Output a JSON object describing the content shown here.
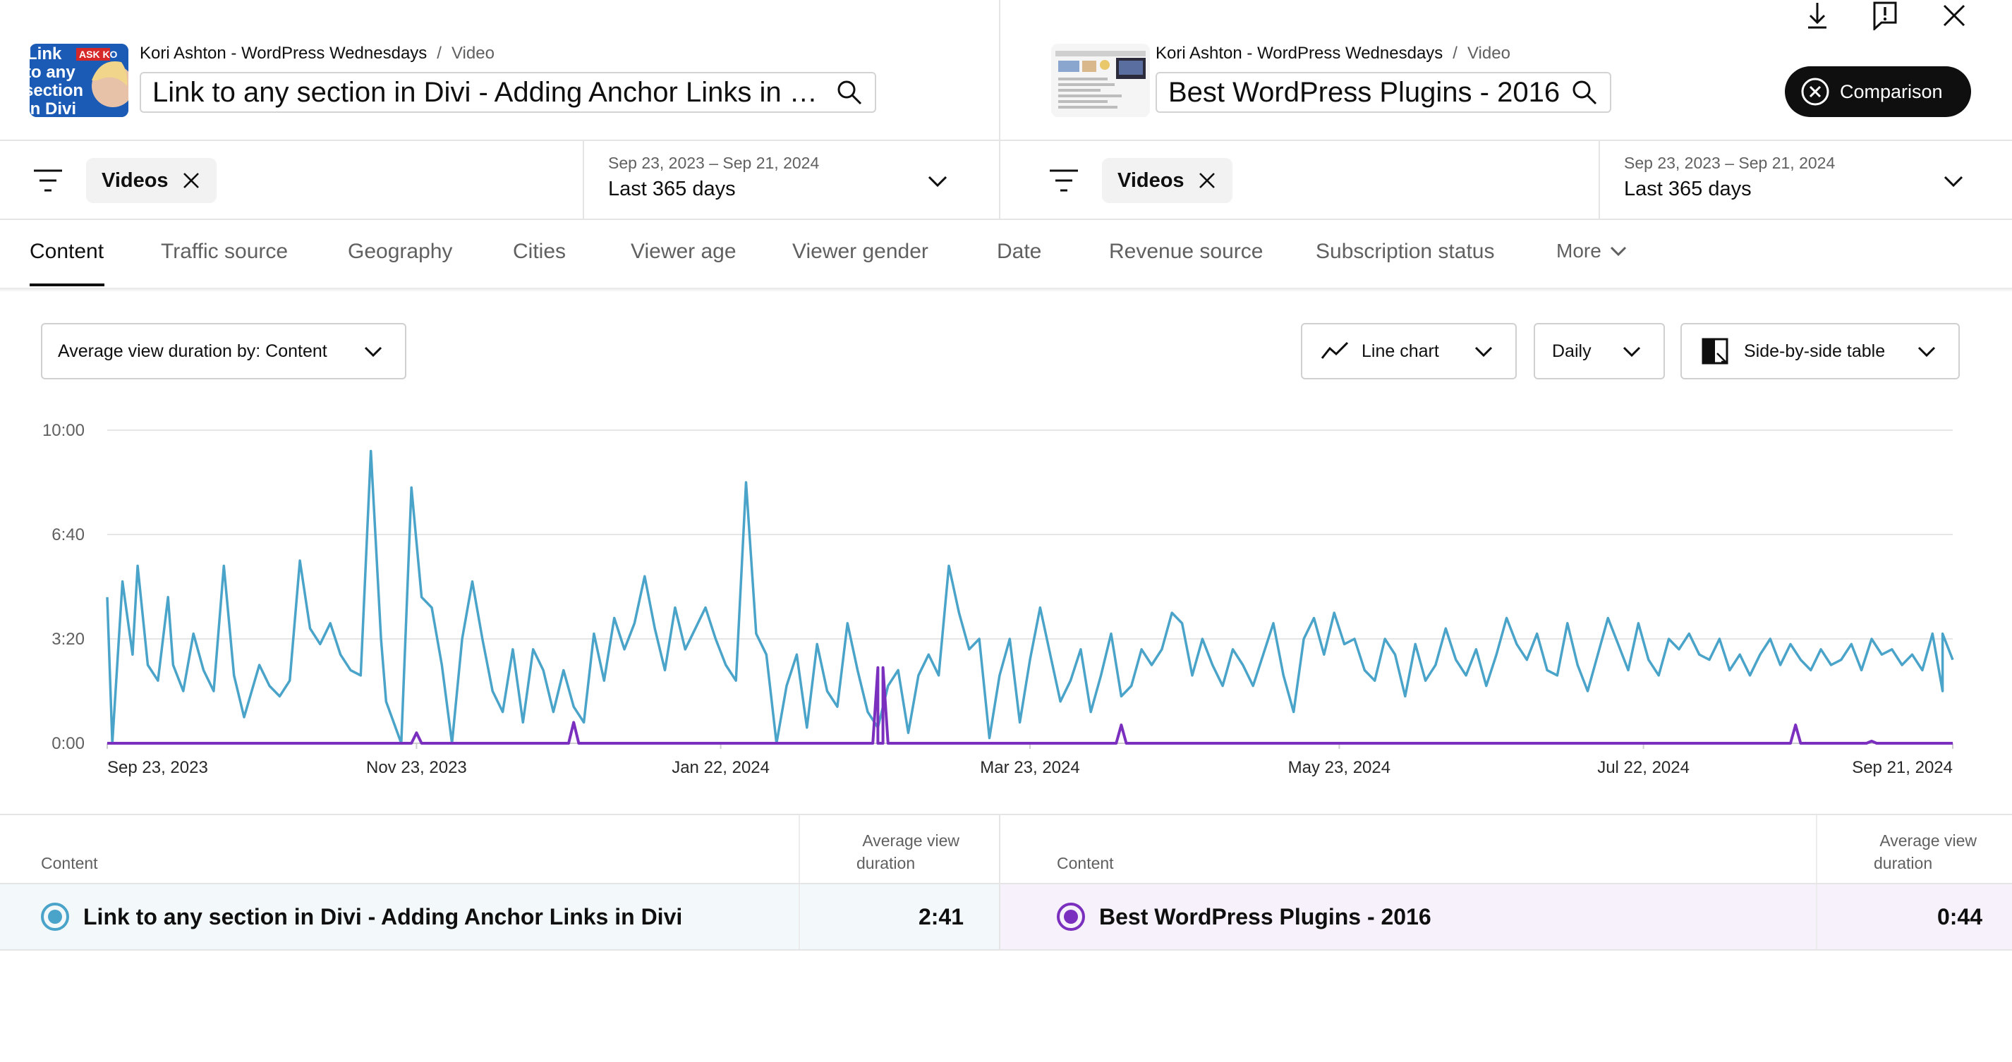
{
  "colors": {
    "accent_a": "#4aa3c8",
    "accent_b": "#7b2fbe",
    "row_a_bg": "#f3f9fb",
    "row_b_bg": "#f6f1fb"
  },
  "toolbar": {
    "icons": [
      "download-icon",
      "feedback-icon",
      "close-icon"
    ]
  },
  "left": {
    "thumbnail_text": [
      "Link",
      "to any",
      "section",
      "in Divi"
    ],
    "thumbnail_badge": "ASK KO",
    "channel": "Kori Ashton - WordPress Wednesdays",
    "separator": "/",
    "type": "Video",
    "title": "Link to any section in Divi - Adding Anchor Links in Divi",
    "filter_chip": "Videos",
    "date_range": "Sep 23, 2023 – Sep 21, 2024",
    "period": "Last 365 days"
  },
  "right": {
    "channel": "Kori Ashton - WordPress Wednesdays",
    "separator": "/",
    "type": "Video",
    "title": "Best WordPress Plugins - 2016",
    "filter_chip": "Videos",
    "date_range": "Sep 23, 2023 – Sep 21, 2024",
    "period": "Last 365 days",
    "comparison_label": "Comparison"
  },
  "tabs": [
    "Content",
    "Traffic source",
    "Geography",
    "Cities",
    "Viewer age",
    "Viewer gender",
    "Date",
    "Revenue source",
    "Subscription status",
    "More"
  ],
  "controls": {
    "metric": "Average view duration by: Content",
    "chart_type": "Line chart",
    "granularity": "Daily",
    "table_mode": "Side-by-side table"
  },
  "chart_data": {
    "type": "line",
    "x_start": "Sep 23, 2023",
    "x_end": "Sep 21, 2024",
    "x_tick_labels": [
      "Sep 23, 2023",
      "Nov 23, 2023",
      "Jan 22, 2024",
      "Mar 23, 2024",
      "May 23, 2024",
      "Jul 22, 2024",
      "Sep 21, 2024"
    ],
    "y_tick_labels": [
      "0:00",
      "3:20",
      "6:40",
      "10:00"
    ],
    "y_unit": "seconds",
    "ylim": [
      0,
      600
    ],
    "grid": true,
    "series": [
      {
        "name": "Link to any section in Divi - Adding Anchor Links in Divi",
        "color": "#4aa3c8",
        "anchors": [
          [
            0,
            280
          ],
          [
            1,
            0
          ],
          [
            3,
            310
          ],
          [
            5,
            170
          ],
          [
            6,
            340
          ],
          [
            8,
            150
          ],
          [
            10,
            120
          ],
          [
            12,
            280
          ],
          [
            13,
            150
          ],
          [
            15,
            100
          ],
          [
            17,
            210
          ],
          [
            19,
            140
          ],
          [
            21,
            100
          ],
          [
            23,
            340
          ],
          [
            25,
            130
          ],
          [
            27,
            50
          ],
          [
            30,
            150
          ],
          [
            32,
            110
          ],
          [
            34,
            90
          ],
          [
            36,
            120
          ],
          [
            38,
            350
          ],
          [
            40,
            220
          ],
          [
            42,
            190
          ],
          [
            44,
            230
          ],
          [
            46,
            170
          ],
          [
            48,
            140
          ],
          [
            50,
            130
          ],
          [
            52,
            560
          ],
          [
            54,
            200
          ],
          [
            55,
            80
          ],
          [
            58,
            0
          ],
          [
            60,
            490
          ],
          [
            62,
            280
          ],
          [
            64,
            260
          ],
          [
            66,
            150
          ],
          [
            68,
            0
          ],
          [
            70,
            200
          ],
          [
            72,
            310
          ],
          [
            74,
            200
          ],
          [
            76,
            100
          ],
          [
            78,
            60
          ],
          [
            80,
            180
          ],
          [
            82,
            40
          ],
          [
            84,
            180
          ],
          [
            86,
            140
          ],
          [
            88,
            60
          ],
          [
            90,
            140
          ],
          [
            92,
            70
          ],
          [
            94,
            40
          ],
          [
            96,
            210
          ],
          [
            98,
            120
          ],
          [
            100,
            240
          ],
          [
            102,
            180
          ],
          [
            104,
            230
          ],
          [
            106,
            320
          ],
          [
            108,
            220
          ],
          [
            110,
            140
          ],
          [
            112,
            260
          ],
          [
            114,
            180
          ],
          [
            116,
            220
          ],
          [
            118,
            260
          ],
          [
            120,
            200
          ],
          [
            122,
            150
          ],
          [
            124,
            120
          ],
          [
            126,
            500
          ],
          [
            128,
            210
          ],
          [
            130,
            170
          ],
          [
            132,
            0
          ],
          [
            134,
            110
          ],
          [
            136,
            170
          ],
          [
            138,
            30
          ],
          [
            140,
            190
          ],
          [
            142,
            100
          ],
          [
            144,
            70
          ],
          [
            146,
            230
          ],
          [
            148,
            140
          ],
          [
            150,
            60
          ],
          [
            152,
            30
          ],
          [
            154,
            110
          ],
          [
            156,
            140
          ],
          [
            158,
            20
          ],
          [
            160,
            130
          ],
          [
            162,
            170
          ],
          [
            164,
            130
          ],
          [
            166,
            340
          ],
          [
            168,
            250
          ],
          [
            170,
            180
          ],
          [
            172,
            200
          ],
          [
            174,
            10
          ],
          [
            176,
            130
          ],
          [
            178,
            200
          ],
          [
            180,
            40
          ],
          [
            182,
            160
          ],
          [
            184,
            260
          ],
          [
            186,
            170
          ],
          [
            188,
            80
          ],
          [
            190,
            120
          ],
          [
            192,
            180
          ],
          [
            194,
            60
          ],
          [
            196,
            130
          ],
          [
            198,
            210
          ],
          [
            200,
            90
          ],
          [
            202,
            110
          ],
          [
            204,
            180
          ],
          [
            206,
            150
          ],
          [
            208,
            180
          ],
          [
            210,
            250
          ],
          [
            212,
            230
          ],
          [
            214,
            130
          ],
          [
            216,
            200
          ],
          [
            218,
            150
          ],
          [
            220,
            110
          ],
          [
            222,
            180
          ],
          [
            224,
            150
          ],
          [
            226,
            110
          ],
          [
            228,
            170
          ],
          [
            230,
            230
          ],
          [
            232,
            130
          ],
          [
            234,
            60
          ],
          [
            236,
            200
          ],
          [
            238,
            240
          ],
          [
            240,
            170
          ],
          [
            242,
            250
          ],
          [
            244,
            190
          ],
          [
            246,
            200
          ],
          [
            248,
            140
          ],
          [
            250,
            120
          ],
          [
            252,
            200
          ],
          [
            254,
            170
          ],
          [
            256,
            90
          ],
          [
            258,
            190
          ],
          [
            260,
            120
          ],
          [
            262,
            150
          ],
          [
            264,
            220
          ],
          [
            266,
            160
          ],
          [
            268,
            130
          ],
          [
            270,
            180
          ],
          [
            272,
            110
          ],
          [
            274,
            170
          ],
          [
            276,
            240
          ],
          [
            278,
            190
          ],
          [
            280,
            160
          ],
          [
            282,
            210
          ],
          [
            284,
            140
          ],
          [
            286,
            130
          ],
          [
            288,
            230
          ],
          [
            290,
            150
          ],
          [
            292,
            100
          ],
          [
            294,
            170
          ],
          [
            296,
            240
          ],
          [
            298,
            190
          ],
          [
            300,
            140
          ],
          [
            302,
            230
          ],
          [
            304,
            160
          ],
          [
            306,
            130
          ],
          [
            308,
            200
          ],
          [
            310,
            180
          ],
          [
            312,
            210
          ],
          [
            314,
            170
          ],
          [
            316,
            160
          ],
          [
            318,
            200
          ],
          [
            320,
            140
          ],
          [
            322,
            170
          ],
          [
            324,
            130
          ],
          [
            326,
            170
          ],
          [
            328,
            200
          ],
          [
            330,
            150
          ],
          [
            332,
            190
          ],
          [
            334,
            160
          ],
          [
            336,
            140
          ],
          [
            338,
            180
          ],
          [
            340,
            150
          ],
          [
            342,
            160
          ],
          [
            344,
            190
          ],
          [
            346,
            140
          ],
          [
            348,
            200
          ],
          [
            350,
            170
          ],
          [
            352,
            180
          ],
          [
            354,
            150
          ],
          [
            356,
            170
          ],
          [
            358,
            140
          ],
          [
            360,
            210
          ],
          [
            362,
            100
          ],
          [
            362,
            210
          ],
          [
            364,
            160
          ]
        ]
      },
      {
        "name": "Best WordPress Plugins - 2016",
        "color": "#7b2fbe",
        "spikes": [
          [
            61,
            20
          ],
          [
            92,
            40
          ],
          [
            152,
            145
          ],
          [
            153,
            145
          ],
          [
            200,
            35
          ],
          [
            333,
            35
          ],
          [
            348,
            4
          ]
        ]
      }
    ]
  },
  "table": {
    "left": {
      "col_content": "Content",
      "col_metric_1": "Average view",
      "col_metric_2": "duration",
      "row_title": "Link to any section in Divi - Adding Anchor Links in Divi",
      "row_value": "2:41"
    },
    "right": {
      "col_content": "Content",
      "col_metric_1": "Average view",
      "col_metric_2": "duration",
      "row_title": "Best WordPress Plugins - 2016",
      "row_value": "0:44"
    }
  }
}
